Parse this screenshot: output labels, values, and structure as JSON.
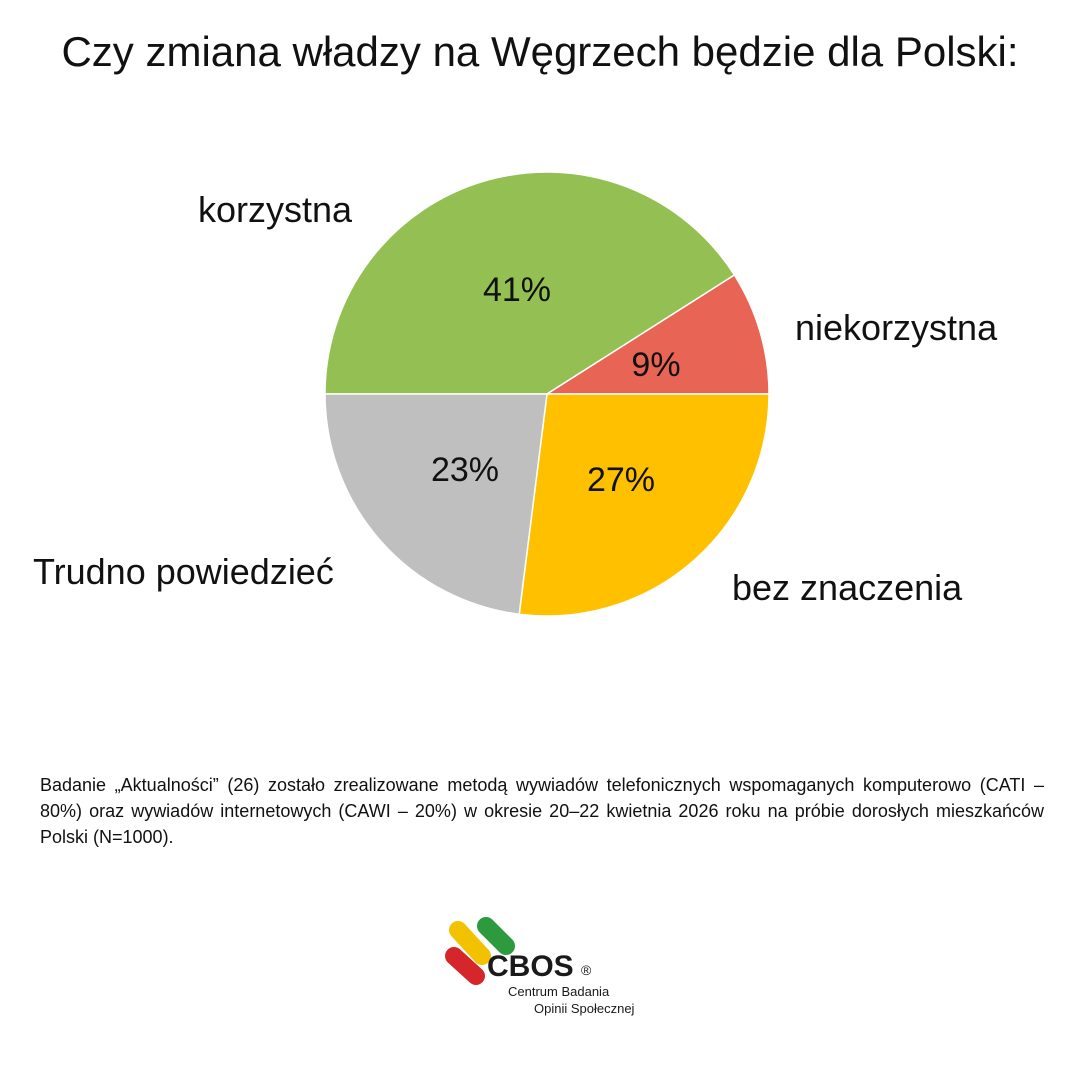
{
  "chart_data": {
    "type": "pie",
    "title": "Czy zmiana władzy na Węgrzech będzie dla Polski:",
    "slices": [
      {
        "name": "korzystna",
        "value": 41,
        "label": "41%",
        "color": "#94bf52"
      },
      {
        "name": "niekorzystna",
        "value": 9,
        "label": "9%",
        "color": "#e86555"
      },
      {
        "name": "bez znaczenia",
        "value": 27,
        "label": "27%",
        "color": "#ffc000"
      },
      {
        "name": "Trudno powiedzieć",
        "value": 23,
        "label": "23%",
        "color": "#bfbfbf"
      }
    ]
  },
  "footnote": "Badanie „Aktualności” (26) zostało zrealizowane metodą wywiadów telefonicznych wspomaganych komputerowo (CATI – 80%) oraz wywiadów internetowych (CAWI – 20%) w okresie 20–22 kwietnia 2026 roku na próbie dorosłych mieszkańców Polski (N=1000).",
  "logo": {
    "name": "CBOS",
    "registered": "®",
    "line1": "Centrum Badania",
    "line2": "Opinii Społecznej",
    "colors": [
      "#f2c200",
      "#2e9a3e",
      "#d4262b"
    ]
  }
}
